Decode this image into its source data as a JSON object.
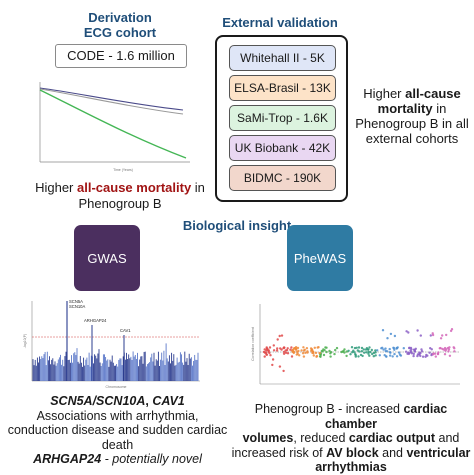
{
  "derivation": {
    "title_line1": "Derivation",
    "title_line2": "ECG cohort",
    "cohort_box": "CODE - 1.6 million",
    "caption_pre": "Higher ",
    "caption_bold": "all-cause mortality",
    "caption_post": " in",
    "caption_line2": "Phenogroup B"
  },
  "validation": {
    "title": "External validation",
    "cohorts": [
      {
        "label": "Whitehall II - 5K",
        "color": "#dfe6f7"
      },
      {
        "label": "ELSA-Brasil - 13K",
        "color": "#fde3c8"
      },
      {
        "label": "SaMi-Trop - 1.6K",
        "color": "#dcf3df"
      },
      {
        "label": "UK Biobank - 42K",
        "color": "#e9d7f2"
      },
      {
        "label": "BIDMC - 190K",
        "color": "#f2d7cc"
      }
    ],
    "side_line1_pre": "Higher ",
    "side_line1_bold": "all-cause",
    "side_line2_bold": "mortality",
    "side_line2_post": " in",
    "side_line3": "Phenogroup B in all",
    "side_line4": "external cohorts"
  },
  "biological": {
    "title": "Biological insight",
    "gwas_label": "GWAS",
    "phewas_label": "PheWAS",
    "gwas_color": "#4b2f5f",
    "phewas_color": "#2f7ba3"
  },
  "gwas_plot": {
    "gene_labels": [
      "SCN5A",
      "SCN10A",
      "ARHGAP24",
      "CAV1"
    ],
    "caption_genes_1": "SCN5A/SCN10A",
    "caption_genes_sep": ", ",
    "caption_genes_2": "CAV1",
    "caption_l2": "Associations with arrhythmia,",
    "caption_l3": "conduction disease and sudden cardiac",
    "caption_l4": "death",
    "caption_l5_gene": "ARHGAP24",
    "caption_l5_rest": " - potentially novel"
  },
  "phewas_plot": {
    "caption_l1_pre": "Phenogroup B - increased ",
    "caption_l1_bold": "cardiac chamber",
    "caption_l2_bold": "volumes",
    "caption_l2_mid": ", reduced ",
    "caption_l2_bold2": "cardiac output",
    "caption_l2_post": " and",
    "caption_l3_pre": "increased risk of ",
    "caption_l3_bold": "AV block",
    "caption_l3_mid": " and ",
    "caption_l3_bold2": "ventricular",
    "caption_l4_bold": "arrhythmias"
  }
}
